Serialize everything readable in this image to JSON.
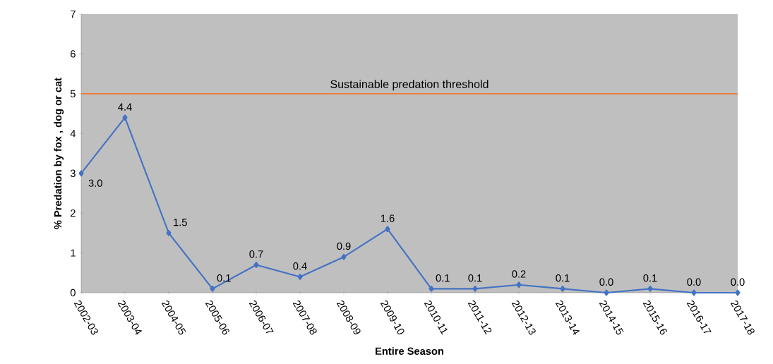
{
  "chart_data": {
    "type": "line",
    "xlabel": "Entire Season",
    "ylabel": "% Predation by fox , dog or cat",
    "categories": [
      "2002-03",
      "2003-04",
      "2004-05",
      "2005-06",
      "2006-07",
      "2007-08",
      "2008-09",
      "2009-10",
      "2010-11",
      "2011-12",
      "2012-13",
      "2013-14",
      "2014-15",
      "2015-16",
      "2016-17",
      "2017-18"
    ],
    "series": [
      {
        "color": "#4472c4",
        "values": [
          3.0,
          4.4,
          1.5,
          0.1,
          0.7,
          0.4,
          0.9,
          1.6,
          0.1,
          0.1,
          0.2,
          0.1,
          0.0,
          0.1,
          0.0,
          0.0
        ],
        "value_labels": [
          "3.0",
          "4.4",
          "1.5",
          "0.1",
          "0.7",
          "0.4",
          "0.9",
          "1.6",
          "0.1",
          "0.1",
          "0.2",
          "0.1",
          "0.0",
          "0.1",
          "0.0",
          "0.0"
        ]
      }
    ],
    "ylim": [
      0,
      7
    ],
    "yticks": [
      0,
      1,
      2,
      3,
      4,
      5,
      6,
      7
    ],
    "ref_lines": [
      {
        "axis": "y",
        "value": 5,
        "label": "Sustainable predation threshold",
        "color": "#ed7d31"
      }
    ],
    "marker": "diamond",
    "grid": false
  }
}
